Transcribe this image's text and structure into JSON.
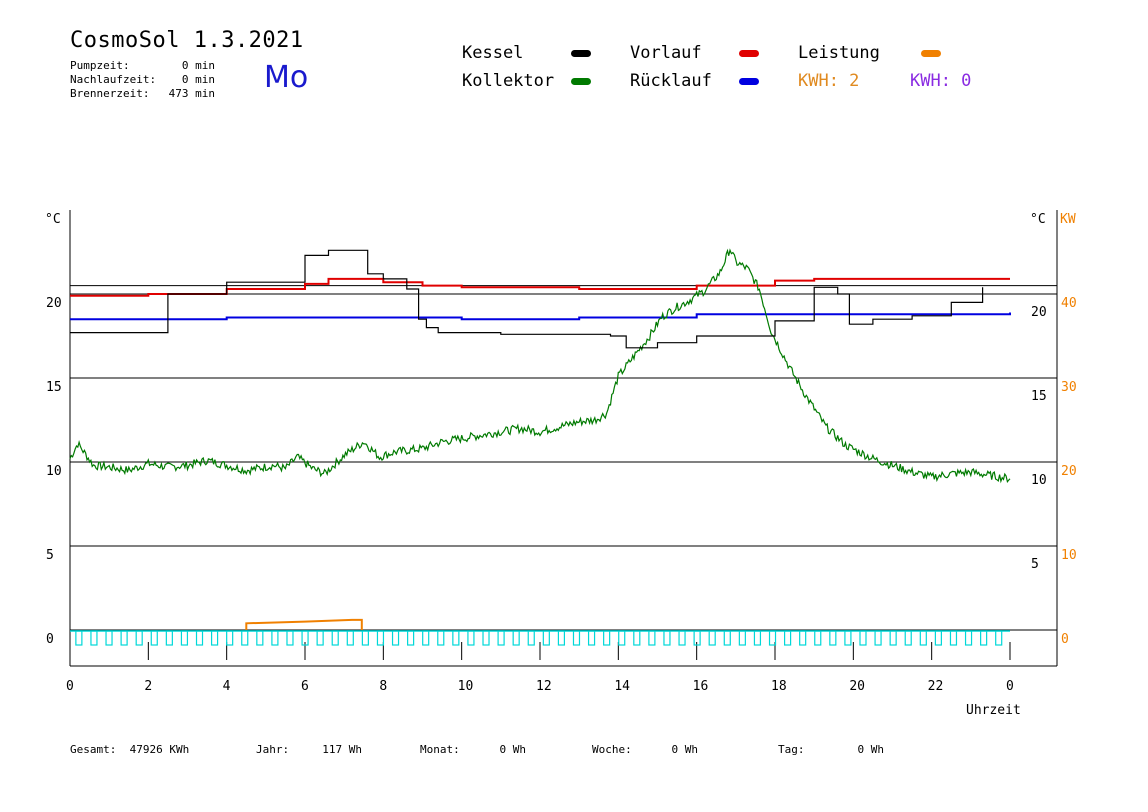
{
  "header": {
    "title": "CosmoSol 1.3.2021",
    "day": "Mo",
    "info": [
      {
        "label": "Pumpzeit:",
        "value": "0 min"
      },
      {
        "label": "Nachlaufzeit:",
        "value": "0 min"
      },
      {
        "label": "Brennerzeit:",
        "value": "473 min"
      }
    ]
  },
  "legend": {
    "kessel": "Kessel",
    "kollektor": "Kollektor",
    "vorlauf": "Vorlauf",
    "ruecklauf": "Rücklauf",
    "leistung": "Leistung",
    "kwh1": "KWH: 2",
    "kwh2": "KWH: 0"
  },
  "colors": {
    "kessel": "#000000",
    "kollektor": "#007a00",
    "vorlauf": "#e00000",
    "ruecklauf": "#0000e0",
    "leistung": "#f08000",
    "pumpe": "#00d8d8",
    "kwh2": "#8a2be2"
  },
  "footer": [
    {
      "label": "Gesamt:",
      "value": "47926 KWh"
    },
    {
      "label": "Jahr:",
      "value": "117 Wh"
    },
    {
      "label": "Monat:",
      "value": "0 Wh"
    },
    {
      "label": "Woche:",
      "value": "0 Wh"
    },
    {
      "label": "Tag:",
      "value": "0 Wh"
    }
  ],
  "chart_data": {
    "type": "line",
    "xlabel": "Uhrzeit",
    "xticks": [
      "0",
      "2",
      "4",
      "6",
      "8",
      "10",
      "12",
      "14",
      "16",
      "18",
      "20",
      "22",
      "0"
    ],
    "xlim": [
      0,
      24
    ],
    "yleft": {
      "unit": "°C",
      "ticks": [
        "0",
        "5",
        "10",
        "15",
        "20"
      ],
      "lim": [
        -2,
        26
      ]
    },
    "yright_temp": {
      "unit": "°C",
      "ticks": [
        "5",
        "10",
        "15",
        "20"
      ]
    },
    "yright_power": {
      "unit": "KW",
      "ticks": [
        "0",
        "10",
        "20",
        "30",
        "40"
      ],
      "color": "#f08000"
    },
    "grid": "horizontal",
    "reference_line": 20.5,
    "series": [
      {
        "name": "Kessel",
        "color": "#000000",
        "points": [
          [
            0,
            17.7
          ],
          [
            2.5,
            20
          ],
          [
            4,
            20.7
          ],
          [
            6,
            22.3
          ],
          [
            6.6,
            22.6
          ],
          [
            7.4,
            22.6
          ],
          [
            7.6,
            21.2
          ],
          [
            8,
            20.9
          ],
          [
            8.6,
            20.3
          ],
          [
            8.9,
            18.5
          ],
          [
            9.1,
            18
          ],
          [
            9.4,
            17.7
          ],
          [
            11,
            17.6
          ],
          [
            13.8,
            17.5
          ],
          [
            14.2,
            16.8
          ],
          [
            15,
            17.1
          ],
          [
            16,
            17.5
          ],
          [
            18,
            18.4
          ],
          [
            19,
            20.4
          ],
          [
            19.6,
            20
          ],
          [
            19.9,
            18.2
          ],
          [
            20.5,
            18.5
          ],
          [
            21.5,
            18.7
          ],
          [
            22.5,
            19.5
          ],
          [
            23.3,
            20.4
          ]
        ]
      },
      {
        "name": "Kollektor",
        "color": "#007a00",
        "points": [
          [
            0,
            10.2
          ],
          [
            0.2,
            11.1
          ],
          [
            0.6,
            9.8
          ],
          [
            1,
            9.7
          ],
          [
            1.5,
            9.5
          ],
          [
            2,
            9.9
          ],
          [
            2.5,
            9.7
          ],
          [
            3,
            9.8
          ],
          [
            3.5,
            10.1
          ],
          [
            4,
            9.8
          ],
          [
            4.5,
            9.5
          ],
          [
            5.2,
            9.8
          ],
          [
            5.5,
            9.6
          ],
          [
            5.8,
            10.3
          ],
          [
            6.2,
            9.6
          ],
          [
            6.5,
            9.3
          ],
          [
            7,
            10.4
          ],
          [
            7.5,
            11.2
          ],
          [
            7.9,
            10.3
          ],
          [
            8.3,
            10.6
          ],
          [
            9,
            10.8
          ],
          [
            9.5,
            11.2
          ],
          [
            10,
            11.4
          ],
          [
            10.5,
            11.6
          ],
          [
            11,
            11.8
          ],
          [
            11.5,
            12
          ],
          [
            12,
            11.8
          ],
          [
            12.5,
            12.1
          ],
          [
            13,
            12.4
          ],
          [
            13.4,
            12.5
          ],
          [
            13.7,
            12.9
          ],
          [
            14,
            15.1
          ],
          [
            14.4,
            16.3
          ],
          [
            14.8,
            17.5
          ],
          [
            15.1,
            18.6
          ],
          [
            15.4,
            19.1
          ],
          [
            15.8,
            19.6
          ],
          [
            16.2,
            20.2
          ],
          [
            16.6,
            21.3
          ],
          [
            16.85,
            22.7
          ],
          [
            17,
            21.9
          ],
          [
            17.3,
            21.5
          ],
          [
            17.6,
            20.3
          ],
          [
            17.9,
            17.8
          ],
          [
            18.4,
            15.5
          ],
          [
            18.8,
            13.9
          ],
          [
            19.3,
            12.1
          ],
          [
            19.8,
            11
          ],
          [
            20.5,
            10.2
          ],
          [
            21,
            9.8
          ],
          [
            21.5,
            9.4
          ],
          [
            22,
            9.1
          ],
          [
            22.5,
            9.3
          ],
          [
            23,
            9.4
          ],
          [
            23.5,
            9.2
          ],
          [
            24,
            9
          ]
        ]
      },
      {
        "name": "Vorlauf",
        "color": "#e00000",
        "points": [
          [
            0,
            19.9
          ],
          [
            2,
            20
          ],
          [
            4,
            20.3
          ],
          [
            6,
            20.6
          ],
          [
            6.6,
            20.9
          ],
          [
            8,
            20.7
          ],
          [
            9,
            20.5
          ],
          [
            10,
            20.4
          ],
          [
            13,
            20.3
          ],
          [
            16,
            20.5
          ],
          [
            18,
            20.8
          ],
          [
            19,
            20.9
          ],
          [
            24,
            20.9
          ]
        ]
      },
      {
        "name": "Rücklauf",
        "color": "#0000e0",
        "points": [
          [
            0,
            18.5
          ],
          [
            4,
            18.6
          ],
          [
            9,
            18.6
          ],
          [
            10,
            18.5
          ],
          [
            13,
            18.6
          ],
          [
            16,
            18.8
          ],
          [
            24,
            18.9
          ]
        ]
      },
      {
        "name": "Leistung",
        "color": "#f08000",
        "points": [
          [
            4.5,
            0.4
          ],
          [
            6,
            0.5
          ],
          [
            7.2,
            0.6
          ],
          [
            7.45,
            0.6
          ],
          [
            7.45,
            0
          ]
        ]
      }
    ]
  }
}
